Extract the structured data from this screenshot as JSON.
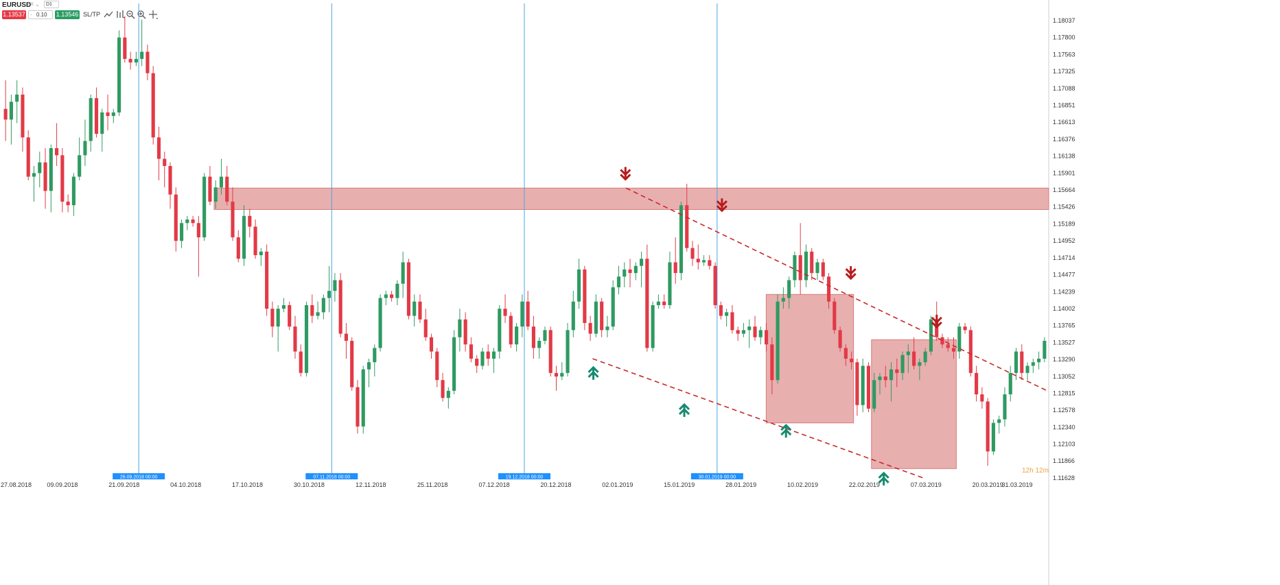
{
  "toolbar": {
    "symbol": "EURUSD",
    "market": "FX",
    "timeframe": "D1",
    "sell_price": "1.13537",
    "lot_size": "0.10",
    "lot_minus": "-",
    "buy_price": "1.13546",
    "sltp_label": "SL/TP",
    "tools": [
      "line-chart-icon",
      "bar-chart-icon",
      "zoom-out-icon",
      "zoom-in-icon",
      "crosshair-icon"
    ]
  },
  "colors": {
    "bull": "#2f9a62",
    "bear": "#e23a46",
    "zone": "#d97a7a",
    "marker": "#4aa3e0",
    "marker_label_bg": "#1e90ff",
    "trend": "#c62828",
    "down_arrow": "#b71c1c",
    "up_arrow": "#168a6f"
  },
  "timer": "12h 12m",
  "chart_data": {
    "type": "candlestick",
    "symbol": "EURUSD",
    "timeframe": "D1",
    "price_axis": [
      "1.18037",
      "1.17800",
      "1.17563",
      "1.17325",
      "1.17088",
      "1.16851",
      "1.16613",
      "1.16376",
      "1.16138",
      "1.15901",
      "1.15664",
      "1.15426",
      "1.15189",
      "1.14952",
      "1.14714",
      "1.14477",
      "1.14239",
      "1.14002",
      "1.13765",
      "1.13527",
      "1.13290",
      "1.13052",
      "1.12815",
      "1.12578",
      "1.12340",
      "1.12103",
      "1.11866",
      "1.11628"
    ],
    "time_axis": [
      "27.08.2018",
      "09.09.2018",
      "21.09.2018",
      "04.10.2018",
      "17.10.2018",
      "30.10.2018",
      "12.11.2018",
      "25.11.2018",
      "07.12.2018",
      "20.12.2018",
      "02.01.2019",
      "15.01.2019",
      "28.01.2019",
      "10.02.2019",
      "22.02.2019",
      "07.03.2019",
      "20.03.2019",
      "31.03.2019"
    ],
    "date_range": [
      "27.08.2018",
      "31.03.2019"
    ],
    "price_range": [
      1.11628,
      1.18037
    ],
    "candles": [
      [
        1.168,
        1.172,
        1.1635,
        1.1665
      ],
      [
        1.1665,
        1.17,
        1.163,
        1.169
      ],
      [
        1.169,
        1.172,
        1.166,
        1.17
      ],
      [
        1.17,
        1.171,
        1.162,
        1.164
      ],
      [
        1.164,
        1.165,
        1.158,
        1.1585
      ],
      [
        1.1585,
        1.16,
        1.155,
        1.159
      ],
      [
        1.159,
        1.162,
        1.157,
        1.1605
      ],
      [
        1.1605,
        1.1625,
        1.154,
        1.1565
      ],
      [
        1.1565,
        1.163,
        1.1535,
        1.1625
      ],
      [
        1.1625,
        1.166,
        1.16,
        1.1615
      ],
      [
        1.1615,
        1.1625,
        1.1535,
        1.155
      ],
      [
        1.155,
        1.156,
        1.1535,
        1.1545
      ],
      [
        1.1545,
        1.159,
        1.153,
        1.1585
      ],
      [
        1.1585,
        1.164,
        1.158,
        1.1615
      ],
      [
        1.1615,
        1.1665,
        1.16,
        1.1635
      ],
      [
        1.1635,
        1.17,
        1.162,
        1.1695
      ],
      [
        1.1695,
        1.171,
        1.164,
        1.1645
      ],
      [
        1.1645,
        1.168,
        1.162,
        1.1675
      ],
      [
        1.1675,
        1.17,
        1.165,
        1.167
      ],
      [
        1.167,
        1.168,
        1.166,
        1.1675
      ],
      [
        1.1675,
        1.179,
        1.167,
        1.178
      ],
      [
        1.178,
        1.181,
        1.1745,
        1.175
      ],
      [
        1.175,
        1.176,
        1.1735,
        1.1745
      ],
      [
        1.1745,
        1.176,
        1.174,
        1.175
      ],
      [
        1.175,
        1.1805,
        1.174,
        1.176
      ],
      [
        1.176,
        1.177,
        1.172,
        1.173
      ],
      [
        1.173,
        1.174,
        1.163,
        1.164
      ],
      [
        1.164,
        1.1655,
        1.158,
        1.161
      ],
      [
        1.161,
        1.162,
        1.157,
        1.16
      ],
      [
        1.16,
        1.1605,
        1.154,
        1.156
      ],
      [
        1.156,
        1.157,
        1.148,
        1.1495
      ],
      [
        1.1495,
        1.1525,
        1.1485,
        1.152
      ],
      [
        1.152,
        1.153,
        1.151,
        1.1525
      ],
      [
        1.1525,
        1.153,
        1.1515,
        1.152
      ],
      [
        1.152,
        1.153,
        1.1445,
        1.15
      ],
      [
        1.15,
        1.159,
        1.1495,
        1.1585
      ],
      [
        1.1585,
        1.16,
        1.1545,
        1.155
      ],
      [
        1.155,
        1.158,
        1.154,
        1.157
      ],
      [
        1.157,
        1.161,
        1.156,
        1.1585
      ],
      [
        1.1585,
        1.16,
        1.1545,
        1.155
      ],
      [
        1.155,
        1.157,
        1.1495,
        1.15
      ],
      [
        1.15,
        1.151,
        1.1465,
        1.147
      ],
      [
        1.147,
        1.1545,
        1.146,
        1.153
      ],
      [
        1.153,
        1.154,
        1.15,
        1.1515
      ],
      [
        1.1515,
        1.1525,
        1.147,
        1.1475
      ],
      [
        1.1475,
        1.1485,
        1.146,
        1.148
      ],
      [
        1.148,
        1.149,
        1.139,
        1.14
      ],
      [
        1.14,
        1.141,
        1.136,
        1.1375
      ],
      [
        1.1375,
        1.1405,
        1.134,
        1.14
      ],
      [
        1.14,
        1.1415,
        1.1395,
        1.1405
      ],
      [
        1.1405,
        1.141,
        1.137,
        1.1375
      ],
      [
        1.1375,
        1.139,
        1.133,
        1.134
      ],
      [
        1.134,
        1.135,
        1.1305,
        1.131
      ],
      [
        1.131,
        1.141,
        1.1305,
        1.1405
      ],
      [
        1.1405,
        1.142,
        1.138,
        1.139
      ],
      [
        1.139,
        1.141,
        1.1385,
        1.1395
      ],
      [
        1.1395,
        1.142,
        1.1385,
        1.1415
      ],
      [
        1.1415,
        1.146,
        1.1395,
        1.1425
      ],
      [
        1.1425,
        1.145,
        1.141,
        1.144
      ],
      [
        1.144,
        1.145,
        1.136,
        1.1365
      ],
      [
        1.1365,
        1.138,
        1.133,
        1.1355
      ],
      [
        1.1355,
        1.136,
        1.1285,
        1.129
      ],
      [
        1.129,
        1.13,
        1.1225,
        1.1235
      ],
      [
        1.1235,
        1.132,
        1.1225,
        1.1315
      ],
      [
        1.1315,
        1.133,
        1.129,
        1.1325
      ],
      [
        1.1325,
        1.135,
        1.1305,
        1.1345
      ],
      [
        1.1345,
        1.142,
        1.134,
        1.1415
      ],
      [
        1.1415,
        1.1425,
        1.1405,
        1.142
      ],
      [
        1.142,
        1.1425,
        1.141,
        1.1415
      ],
      [
        1.1415,
        1.144,
        1.1405,
        1.1435
      ],
      [
        1.1435,
        1.148,
        1.1415,
        1.1465
      ],
      [
        1.1465,
        1.147,
        1.1385,
        1.139
      ],
      [
        1.139,
        1.142,
        1.1375,
        1.141
      ],
      [
        1.141,
        1.142,
        1.138,
        1.1385
      ],
      [
        1.1385,
        1.14,
        1.1355,
        1.136
      ],
      [
        1.136,
        1.1365,
        1.133,
        1.134
      ],
      [
        1.134,
        1.1345,
        1.129,
        1.13
      ],
      [
        1.13,
        1.131,
        1.127,
        1.1275
      ],
      [
        1.1275,
        1.129,
        1.126,
        1.1285
      ],
      [
        1.1285,
        1.137,
        1.128,
        1.136
      ],
      [
        1.136,
        1.14,
        1.134,
        1.1385
      ],
      [
        1.1385,
        1.1395,
        1.134,
        1.135
      ],
      [
        1.135,
        1.136,
        1.1325,
        1.133
      ],
      [
        1.133,
        1.1335,
        1.131,
        1.132
      ],
      [
        1.132,
        1.1345,
        1.1315,
        1.134
      ],
      [
        1.134,
        1.135,
        1.132,
        1.133
      ],
      [
        1.133,
        1.1345,
        1.131,
        1.134
      ],
      [
        1.134,
        1.1405,
        1.133,
        1.14
      ],
      [
        1.14,
        1.142,
        1.138,
        1.139
      ],
      [
        1.139,
        1.1395,
        1.1345,
        1.135
      ],
      [
        1.135,
        1.138,
        1.134,
        1.1375
      ],
      [
        1.1375,
        1.142,
        1.136,
        1.141
      ],
      [
        1.141,
        1.1425,
        1.137,
        1.1375
      ],
      [
        1.1375,
        1.139,
        1.133,
        1.1345
      ],
      [
        1.1345,
        1.136,
        1.133,
        1.1355
      ],
      [
        1.1355,
        1.1375,
        1.135,
        1.137
      ],
      [
        1.137,
        1.1375,
        1.1305,
        1.131
      ],
      [
        1.131,
        1.132,
        1.1285,
        1.1305
      ],
      [
        1.1305,
        1.1325,
        1.13,
        1.131
      ],
      [
        1.131,
        1.138,
        1.1305,
        1.137
      ],
      [
        1.137,
        1.1425,
        1.136,
        1.141
      ],
      [
        1.141,
        1.147,
        1.14,
        1.1455
      ],
      [
        1.1455,
        1.146,
        1.137,
        1.138
      ],
      [
        1.138,
        1.139,
        1.1355,
        1.1365
      ],
      [
        1.1365,
        1.142,
        1.136,
        1.141
      ],
      [
        1.141,
        1.1415,
        1.136,
        1.137
      ],
      [
        1.137,
        1.139,
        1.136,
        1.1375
      ],
      [
        1.1375,
        1.144,
        1.137,
        1.143
      ],
      [
        1.143,
        1.146,
        1.142,
        1.1445
      ],
      [
        1.1445,
        1.1465,
        1.143,
        1.1455
      ],
      [
        1.1455,
        1.147,
        1.143,
        1.145
      ],
      [
        1.145,
        1.1465,
        1.144,
        1.146
      ],
      [
        1.146,
        1.148,
        1.143,
        1.147
      ],
      [
        1.147,
        1.149,
        1.134,
        1.1345
      ],
      [
        1.1345,
        1.141,
        1.134,
        1.1405
      ],
      [
        1.1405,
        1.142,
        1.14,
        1.141
      ],
      [
        1.141,
        1.142,
        1.14,
        1.1405
      ],
      [
        1.1405,
        1.148,
        1.14,
        1.1465
      ],
      [
        1.1465,
        1.15,
        1.1435,
        1.145
      ],
      [
        1.145,
        1.155,
        1.144,
        1.1545
      ],
      [
        1.1545,
        1.1575,
        1.148,
        1.1485
      ],
      [
        1.1485,
        1.1495,
        1.146,
        1.147
      ],
      [
        1.147,
        1.149,
        1.1455,
        1.1465
      ],
      [
        1.1465,
        1.1475,
        1.146,
        1.1468
      ],
      [
        1.1468,
        1.1475,
        1.1455,
        1.146
      ],
      [
        1.146,
        1.1465,
        1.14,
        1.1405
      ],
      [
        1.1405,
        1.141,
        1.1385,
        1.139
      ],
      [
        1.139,
        1.14,
        1.1375,
        1.1395
      ],
      [
        1.1395,
        1.1405,
        1.1365,
        1.137
      ],
      [
        1.137,
        1.1375,
        1.1355,
        1.1365
      ],
      [
        1.1365,
        1.138,
        1.136,
        1.137
      ],
      [
        1.137,
        1.1385,
        1.1345,
        1.1375
      ],
      [
        1.1375,
        1.139,
        1.1355,
        1.136
      ],
      [
        1.136,
        1.1375,
        1.135,
        1.137
      ],
      [
        1.137,
        1.138,
        1.134,
        1.135
      ],
      [
        1.135,
        1.136,
        1.128,
        1.13
      ],
      [
        1.13,
        1.142,
        1.1295,
        1.141
      ],
      [
        1.141,
        1.143,
        1.14,
        1.1415
      ],
      [
        1.1415,
        1.1445,
        1.14,
        1.144
      ],
      [
        1.144,
        1.148,
        1.143,
        1.1475
      ],
      [
        1.1475,
        1.152,
        1.142,
        1.144
      ],
      [
        1.144,
        1.149,
        1.143,
        1.148
      ],
      [
        1.148,
        1.1485,
        1.144,
        1.145
      ],
      [
        1.145,
        1.147,
        1.144,
        1.1465
      ],
      [
        1.1465,
        1.147,
        1.144,
        1.1445
      ],
      [
        1.1445,
        1.145,
        1.14,
        1.141
      ],
      [
        1.141,
        1.1415,
        1.1365,
        1.137
      ],
      [
        1.137,
        1.1375,
        1.134,
        1.1345
      ],
      [
        1.1345,
        1.135,
        1.132,
        1.133
      ],
      [
        1.133,
        1.134,
        1.1315,
        1.1325
      ],
      [
        1.1325,
        1.133,
        1.125,
        1.1265
      ],
      [
        1.1265,
        1.133,
        1.1255,
        1.132
      ],
      [
        1.132,
        1.1325,
        1.1255,
        1.126
      ],
      [
        1.126,
        1.131,
        1.1255,
        1.13
      ],
      [
        1.13,
        1.131,
        1.128,
        1.1305
      ],
      [
        1.1305,
        1.132,
        1.129,
        1.13
      ],
      [
        1.13,
        1.1325,
        1.127,
        1.1315
      ],
      [
        1.1315,
        1.133,
        1.129,
        1.131
      ],
      [
        1.131,
        1.134,
        1.13,
        1.1335
      ],
      [
        1.1335,
        1.135,
        1.131,
        1.134
      ],
      [
        1.134,
        1.136,
        1.1315,
        1.132
      ],
      [
        1.132,
        1.133,
        1.13,
        1.1325
      ],
      [
        1.1325,
        1.1345,
        1.132,
        1.134
      ],
      [
        1.134,
        1.139,
        1.1335,
        1.1385
      ],
      [
        1.1385,
        1.141,
        1.1355,
        1.136
      ],
      [
        1.136,
        1.1365,
        1.1345,
        1.135
      ],
      [
        1.135,
        1.136,
        1.134,
        1.1345
      ],
      [
        1.1345,
        1.136,
        1.133,
        1.134
      ],
      [
        1.134,
        1.138,
        1.133,
        1.1375
      ],
      [
        1.1375,
        1.138,
        1.1365,
        1.137
      ],
      [
        1.137,
        1.1375,
        1.1305,
        1.131
      ],
      [
        1.131,
        1.132,
        1.127,
        1.128
      ],
      [
        1.128,
        1.129,
        1.126,
        1.127
      ],
      [
        1.127,
        1.1275,
        1.118,
        1.12
      ],
      [
        1.12,
        1.1245,
        1.1195,
        1.124
      ],
      [
        1.124,
        1.125,
        1.1225,
        1.1245
      ],
      [
        1.1245,
        1.129,
        1.1235,
        1.128
      ],
      [
        1.128,
        1.132,
        1.127,
        1.131
      ],
      [
        1.131,
        1.1345,
        1.13,
        1.134
      ],
      [
        1.134,
        1.135,
        1.13,
        1.131
      ],
      [
        1.131,
        1.1325,
        1.13,
        1.132
      ],
      [
        1.132,
        1.133,
        1.131,
        1.1325
      ],
      [
        1.1325,
        1.134,
        1.1315,
        1.133
      ],
      [
        1.133,
        1.136,
        1.1325,
        1.1355
      ]
    ],
    "resistance_zone": {
      "low": 1.1539,
      "high": 1.1569
    },
    "consolidation_boxes": [
      {
        "t_start": 0.7306,
        "t_end": 0.8139,
        "high": 1.142,
        "low": 1.124
      },
      {
        "t_start": 0.831,
        "t_end": 0.9119,
        "high": 1.13565,
        "low": 1.1176
      }
    ],
    "trend_lines": [
      {
        "t1": 0.597,
        "p1": 1.1569,
        "t2": 1.0,
        "p2": 1.1284
      },
      {
        "t1": 0.5651,
        "p1": 1.133,
        "t2": 0.8806,
        "p2": 1.11628
      }
    ],
    "vertical_markers": [
      {
        "t": 0.1323,
        "label": "26.09.2018 00:00"
      },
      {
        "t": 0.3163,
        "label": "07.11.2018 00:00"
      },
      {
        "t": 0.5,
        "label": "19.12.2018 00:00"
      },
      {
        "t": 0.6838,
        "label": "30.01.2019 00:00"
      }
    ],
    "down_arrows": [
      {
        "t": 0.5964,
        "p": 1.1589
      },
      {
        "t": 0.6884,
        "p": 1.1545
      },
      {
        "t": 0.8113,
        "p": 1.145
      },
      {
        "t": 0.8932,
        "p": 1.1382
      }
    ],
    "up_arrows": [
      {
        "t": 0.5658,
        "p": 1.131
      },
      {
        "t": 0.6525,
        "p": 1.1258
      },
      {
        "t": 0.7495,
        "p": 1.1229
      },
      {
        "t": 0.8427,
        "p": 1.1162
      }
    ]
  }
}
